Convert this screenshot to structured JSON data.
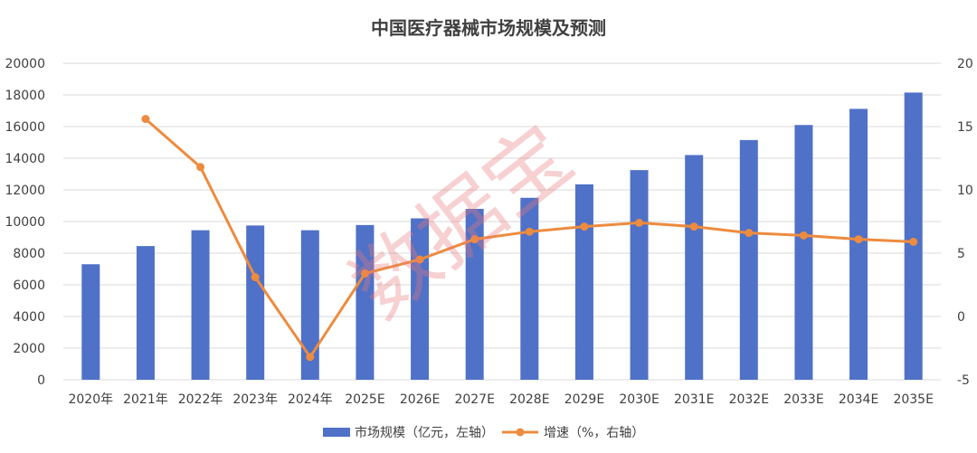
{
  "chart_data": {
    "type": "bar",
    "title": "中国医疗器械市场规模及预测",
    "categories": [
      "2020年",
      "2021年",
      "2022年",
      "2023年",
      "2024年",
      "2025E",
      "2026E",
      "2027E",
      "2028E",
      "2029E",
      "2030E",
      "2031E",
      "2032E",
      "2033E",
      "2034E",
      "2035E"
    ],
    "series": [
      {
        "name": "市场规模（亿元，左轴）",
        "type": "bar",
        "axis": "left",
        "color": "#4f71c7",
        "values": [
          7300,
          8450,
          9450,
          9750,
          9450,
          9780,
          10200,
          10800,
          11500,
          12350,
          13250,
          14200,
          15150,
          16100,
          17120,
          18150
        ]
      },
      {
        "name": "增速（%，右轴）",
        "type": "line",
        "axis": "right",
        "color": "#ed8b3f",
        "values": [
          null,
          15.6,
          11.8,
          3.1,
          -3.2,
          3.4,
          4.5,
          6.1,
          6.7,
          7.1,
          7.4,
          7.1,
          6.6,
          6.4,
          6.1,
          5.9
        ]
      }
    ],
    "y_left": {
      "min": 0,
      "max": 20000,
      "step": 2000,
      "ticks": [
        "0",
        "2000",
        "4000",
        "6000",
        "8000",
        "10000",
        "12000",
        "14000",
        "16000",
        "18000",
        "20000"
      ]
    },
    "y_right": {
      "min": -5,
      "max": 20,
      "step": 5,
      "ticks": [
        "-5",
        "0",
        "5",
        "10",
        "15",
        "20"
      ]
    },
    "grid": true,
    "legend_position": "bottom"
  },
  "watermark": "数据宝"
}
